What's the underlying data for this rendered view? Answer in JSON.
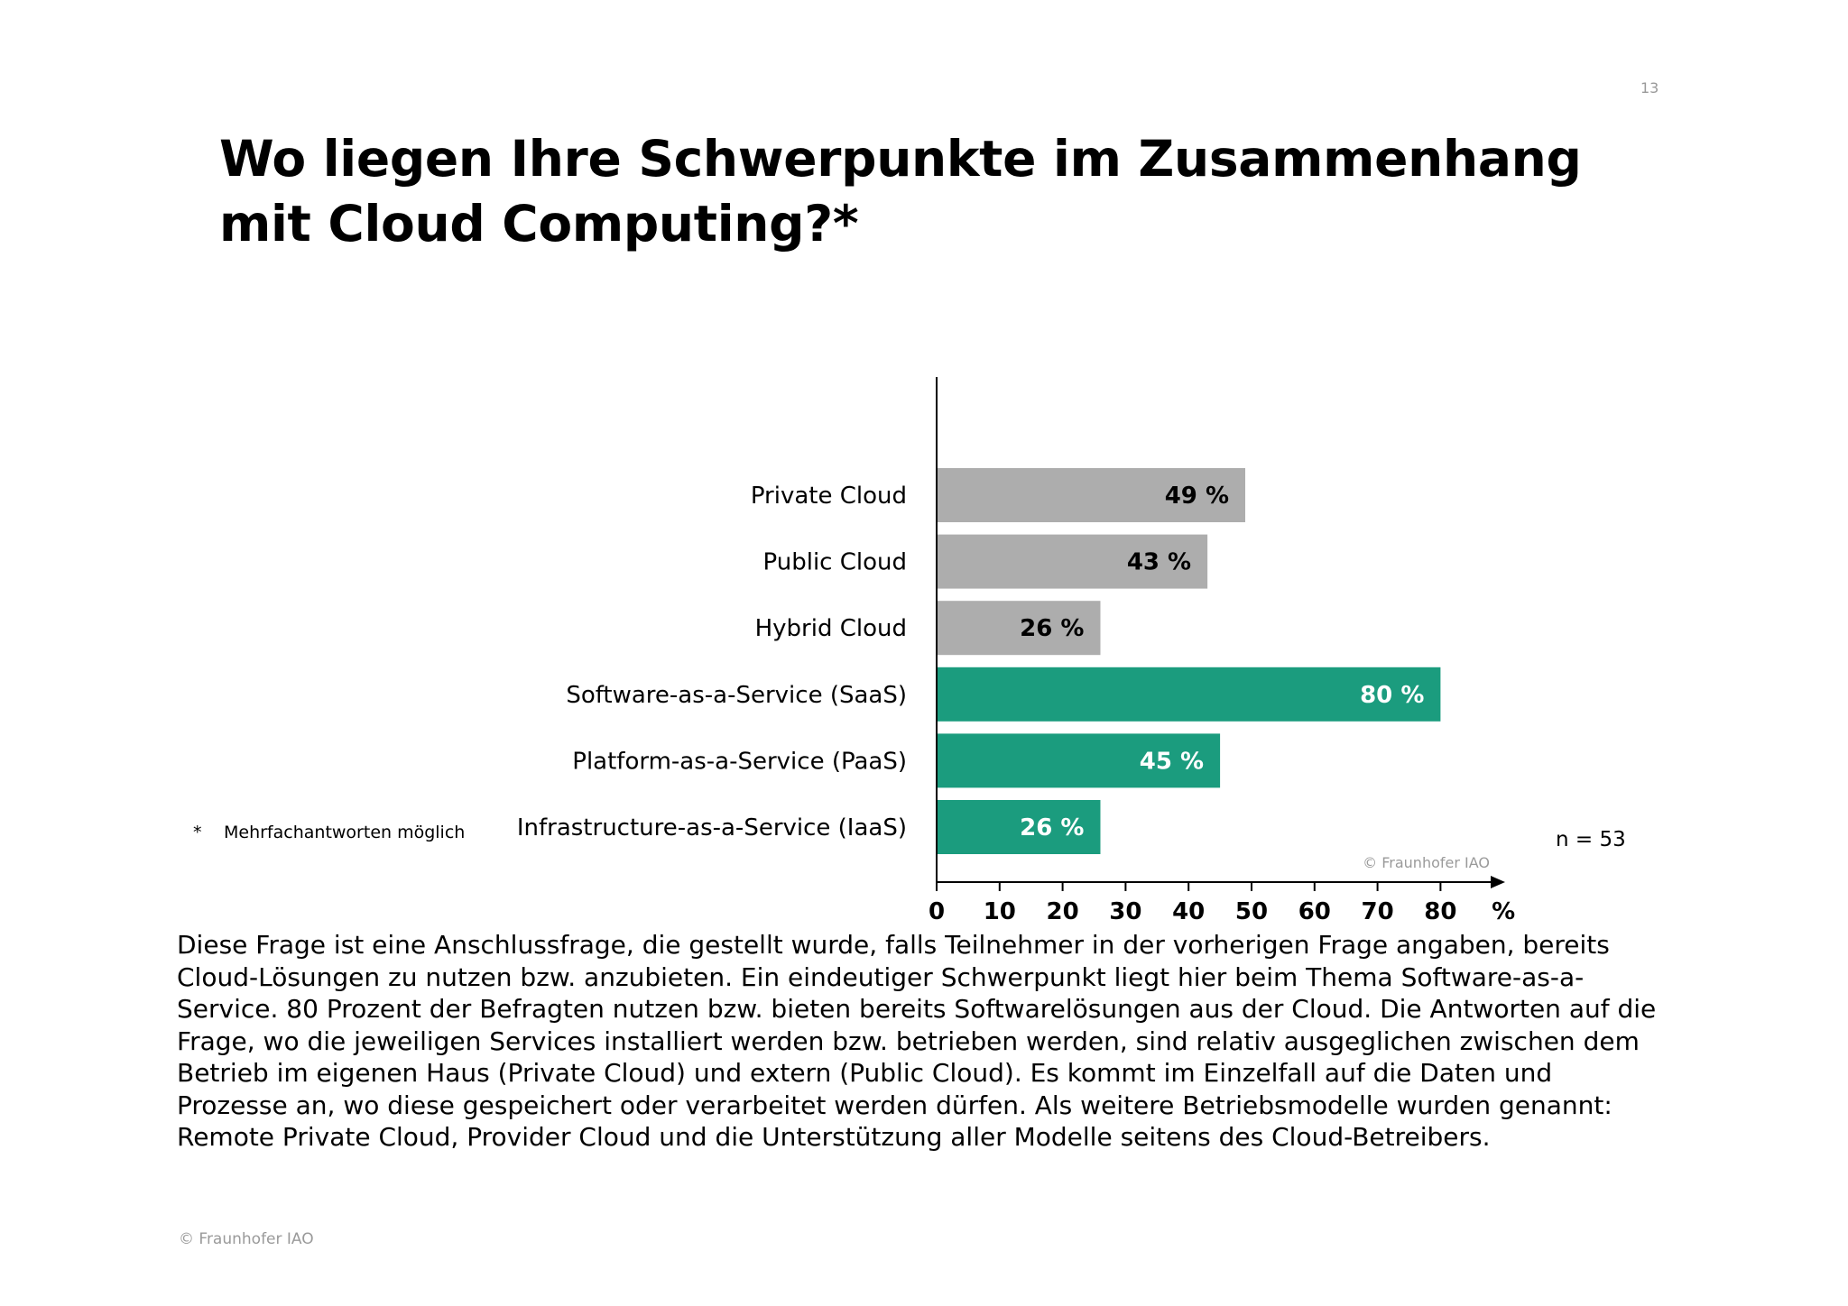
{
  "page": {
    "number": "13",
    "title": "Wo liegen Ihre Schwerpunkte im Zusammenhang mit Cloud Computing?*",
    "footnote_marker": "*",
    "footnote_text": "Mehrfachantworten möglich",
    "sample_size": "n = 53",
    "chart_copyright": "© Fraunhofer IAO",
    "footer_copyright": "© Fraunhofer IAO",
    "body_text": "Diese Frage ist eine Anschlussfrage, die gestellt wurde, falls Teilnehmer in der vorherigen Frage angaben, bereits Cloud-Lösungen zu nutzen bzw. anzubieten. Ein eindeutiger Schwerpunkt liegt hier beim Thema Software-as-a-Service. 80 Prozent der Befragten nutzen bzw. bieten bereits Softwarelösungen aus der Cloud. Die Antworten auf die Frage, wo die jeweiligen Services installiert werden bzw. betrieben werden, sind relativ ausgeglichen zwischen dem Betrieb im eigenen Haus (Private Cloud) und extern (Public Cloud). Es kommt im Einzelfall auf die Daten und Prozesse an, wo diese gespeichert oder verarbeitet werden dürfen. Als weitere Betriebsmodelle wurden genannt: Remote Private Cloud, Provider Cloud und die Unterstützung aller Modelle seitens des Cloud-Betreibers."
  },
  "colors": {
    "grey_bar": "#adadad",
    "green_bar": "#1b9c7e",
    "grey_value_text": "#000000",
    "green_value_text": "#ffffff",
    "axis": "#000000"
  },
  "chart_data": {
    "type": "bar",
    "orientation": "horizontal",
    "title": "",
    "xlabel": "",
    "ylabel": "",
    "x_unit": "%",
    "xlim": [
      0,
      80
    ],
    "xticks": [
      0,
      10,
      20,
      30,
      40,
      50,
      60,
      70,
      80
    ],
    "grid": false,
    "categories": [
      "Private Cloud",
      "Public Cloud",
      "Hybrid Cloud",
      "Software-as-a-Service (SaaS)",
      "Platform-as-a-Service (PaaS)",
      "Infrastructure-as-a-Service (IaaS)"
    ],
    "values": [
      49,
      43,
      26,
      80,
      45,
      26
    ],
    "value_labels": [
      "49 %",
      "43 %",
      "26 %",
      "80 %",
      "45 %",
      "26 %"
    ],
    "bar_color_keys": [
      "grey",
      "grey",
      "grey",
      "green",
      "green",
      "green"
    ]
  }
}
